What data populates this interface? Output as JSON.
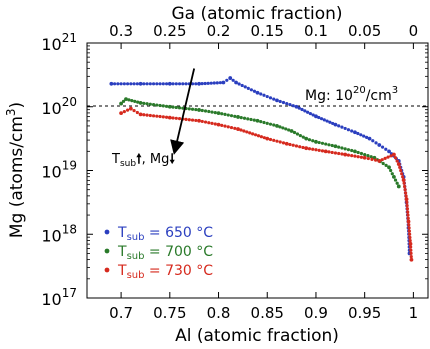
{
  "chart_data": {
    "type": "scatter",
    "title": "",
    "xlabel": "Al (atomic fraction)",
    "x2label": "Ga (atomic fraction)",
    "ylabel_main": "Mg (atoms/cm",
    "ylabel_sup": "3",
    "ylabel_close": ")",
    "xlim": [
      0.665,
      1.015
    ],
    "ylim_log10": [
      17,
      21
    ],
    "y_scale": "log",
    "x_ticks": [
      0.7,
      0.75,
      0.8,
      0.85,
      0.9,
      0.95,
      1.0
    ],
    "x_tick_labels": [
      "0.7",
      "0.75",
      "0.8",
      "0.85",
      "0.9",
      "0.95",
      "1"
    ],
    "x2_tick_labels": [
      "0.3",
      "0.25",
      "0.2",
      "0.15",
      "0.1",
      "0.05",
      "0"
    ],
    "y_ticks_exp": [
      17,
      18,
      19,
      20,
      21
    ],
    "y_tick_base": "10",
    "grid": false,
    "legend_position": "lower-left",
    "reference_line": {
      "log10_y": 20.0,
      "label_main": "Mg: 10",
      "label_sup": "20",
      "label_end": "/cm",
      "label_sup2": "3"
    },
    "arrow_annotation": {
      "from": [
        0.775,
        20.6
      ],
      "to": [
        0.755,
        19.3
      ],
      "text_main": "T",
      "text_sub": "sub",
      "text_rest": ", Mg"
    },
    "series": [
      {
        "name_main": "T",
        "name_sub": "sub",
        "name_rest": " = 650 °C",
        "color": "#2b3fbf",
        "points": [
          [
            0.69,
            20.36
          ],
          [
            0.72,
            20.36
          ],
          [
            0.75,
            20.36
          ],
          [
            0.78,
            20.36
          ],
          [
            0.805,
            20.38
          ],
          [
            0.812,
            20.45
          ],
          [
            0.818,
            20.38
          ],
          [
            0.84,
            20.22
          ],
          [
            0.86,
            20.1
          ],
          [
            0.88,
            20.0
          ],
          [
            0.9,
            19.85
          ],
          [
            0.92,
            19.72
          ],
          [
            0.94,
            19.6
          ],
          [
            0.955,
            19.5
          ],
          [
            0.965,
            19.4
          ],
          [
            0.975,
            19.3
          ],
          [
            0.985,
            19.15
          ],
          [
            0.99,
            18.9
          ],
          [
            0.993,
            18.5
          ],
          [
            0.995,
            18.1
          ],
          [
            0.996,
            17.7
          ]
        ]
      },
      {
        "name_main": "T",
        "name_sub": "sub",
        "name_rest": " = 700 °C",
        "color": "#2a7a2a",
        "points": [
          [
            0.7,
            20.05
          ],
          [
            0.705,
            20.12
          ],
          [
            0.72,
            20.06
          ],
          [
            0.75,
            20.0
          ],
          [
            0.78,
            19.95
          ],
          [
            0.8,
            19.9
          ],
          [
            0.82,
            19.84
          ],
          [
            0.84,
            19.78
          ],
          [
            0.86,
            19.7
          ],
          [
            0.875,
            19.62
          ],
          [
            0.89,
            19.5
          ],
          [
            0.9,
            19.45
          ],
          [
            0.92,
            19.38
          ],
          [
            0.94,
            19.3
          ],
          [
            0.96,
            19.2
          ],
          [
            0.975,
            19.05
          ],
          [
            0.98,
            18.9
          ],
          [
            0.985,
            18.75
          ]
        ]
      },
      {
        "name_main": "T",
        "name_sub": "sub",
        "name_rest": " = 730 °C",
        "color": "#d62a1e",
        "points": [
          [
            0.7,
            19.9
          ],
          [
            0.71,
            19.97
          ],
          [
            0.72,
            19.88
          ],
          [
            0.75,
            19.83
          ],
          [
            0.78,
            19.78
          ],
          [
            0.8,
            19.72
          ],
          [
            0.82,
            19.65
          ],
          [
            0.85,
            19.5
          ],
          [
            0.87,
            19.42
          ],
          [
            0.89,
            19.35
          ],
          [
            0.91,
            19.3
          ],
          [
            0.93,
            19.25
          ],
          [
            0.95,
            19.2
          ],
          [
            0.965,
            19.15
          ],
          [
            0.98,
            19.25
          ],
          [
            0.985,
            19.1
          ],
          [
            0.99,
            18.85
          ],
          [
            0.993,
            18.55
          ],
          [
            0.995,
            18.2
          ],
          [
            0.997,
            17.85
          ],
          [
            0.998,
            17.6
          ]
        ]
      }
    ]
  }
}
